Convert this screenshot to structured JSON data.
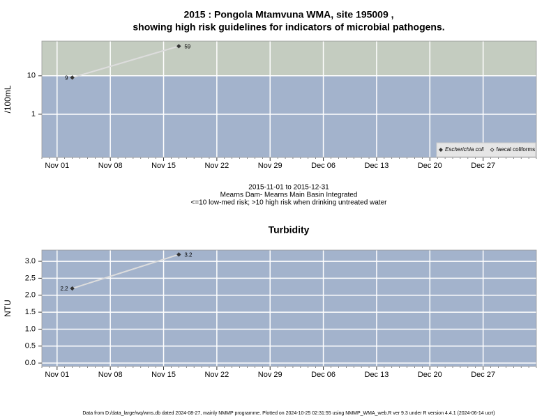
{
  "chart_data": [
    {
      "type": "line",
      "title": [
        "2015 : Pongola Mtamvuna WMA, site 195009 ,",
        "showing high risk guidelines for indicators of microbial pathogens."
      ],
      "ylabel": "/100mL",
      "notes": [
        "2015-11-01 to 2015-12-31",
        "Mearns Dam- Mearns Main Basin Integrated",
        "<=10 low-med risk; >10 high risk when drinking untreated water"
      ],
      "x": [
        "2015-11-03",
        "2015-11-17"
      ],
      "series": [
        {
          "name": "Escherichia coli",
          "color": "#333333",
          "values": [
            9,
            59
          ]
        },
        {
          "name": "faecal coliforms",
          "color": "#333333",
          "values": [
            null,
            null
          ]
        }
      ],
      "xlim": [
        "2015-10-30",
        "2016-01-03"
      ],
      "xticks": [
        {
          "value": "2015-11-01",
          "label": "Nov 01"
        },
        {
          "value": "2015-11-08",
          "label": "Nov 08"
        },
        {
          "value": "2015-11-15",
          "label": "Nov 15"
        },
        {
          "value": "2015-11-22",
          "label": "Nov 22"
        },
        {
          "value": "2015-11-29",
          "label": "Nov 29"
        },
        {
          "value": "2015-12-06",
          "label": "Dec 06"
        },
        {
          "value": "2015-12-13",
          "label": "Dec 13"
        },
        {
          "value": "2015-12-20",
          "label": "Dec 20"
        },
        {
          "value": "2015-12-27",
          "label": "Dec 27"
        }
      ],
      "ylim": [
        0.075,
        80
      ],
      "yticks": [
        1,
        10
      ],
      "log_y": true,
      "threshold": 10,
      "background_color": "#a3b3cc",
      "high_risk_color": "#c4ccc0",
      "line_color": "#dddddd",
      "grid": true,
      "legend": "bottom right"
    },
    {
      "type": "line",
      "title": [
        "Turbidity"
      ],
      "ylabel": "NTU",
      "x": [
        "2015-11-03",
        "2015-11-17"
      ],
      "series": [
        {
          "name": "Turbidity",
          "color": "#333333",
          "values": [
            2.2,
            3.2
          ]
        }
      ],
      "xlim": [
        "2015-10-30",
        "2016-01-03"
      ],
      "xticks": [
        {
          "value": "2015-11-01",
          "label": "Nov 01"
        },
        {
          "value": "2015-11-08",
          "label": "Nov 08"
        },
        {
          "value": "2015-11-15",
          "label": "Nov 15"
        },
        {
          "value": "2015-11-22",
          "label": "Nov 22"
        },
        {
          "value": "2015-11-29",
          "label": "Nov 29"
        },
        {
          "value": "2015-12-06",
          "label": "Dec 06"
        },
        {
          "value": "2015-12-13",
          "label": "Dec 13"
        },
        {
          "value": "2015-12-20",
          "label": "Dec 20"
        },
        {
          "value": "2015-12-27",
          "label": "Dec 27"
        }
      ],
      "ylim": [
        -0.1,
        3.33
      ],
      "yticks": [
        {
          "value": 0,
          "label": "0.0"
        },
        {
          "value": 0.5,
          "label": "0.5"
        },
        {
          "value": 1,
          "label": "1.0"
        },
        {
          "value": 1.5,
          "label": "1.5"
        },
        {
          "value": 2,
          "label": "2.0"
        },
        {
          "value": 2.5,
          "label": "2.5"
        },
        {
          "value": 3,
          "label": "3.0"
        }
      ],
      "log_y": false,
      "background_color": "#a3b3cc",
      "line_color": "#dddddd",
      "grid": true
    }
  ],
  "footer": "Data from D:/data_large/wq/wms.db dated 2024-08-27, mainly NMMP programme. Plotted on 2024-10-25 02:31:55 using NMMP_WMA_web.R ver 9.3 under R version 4.4.1 (2024-06-14 ucrt)"
}
